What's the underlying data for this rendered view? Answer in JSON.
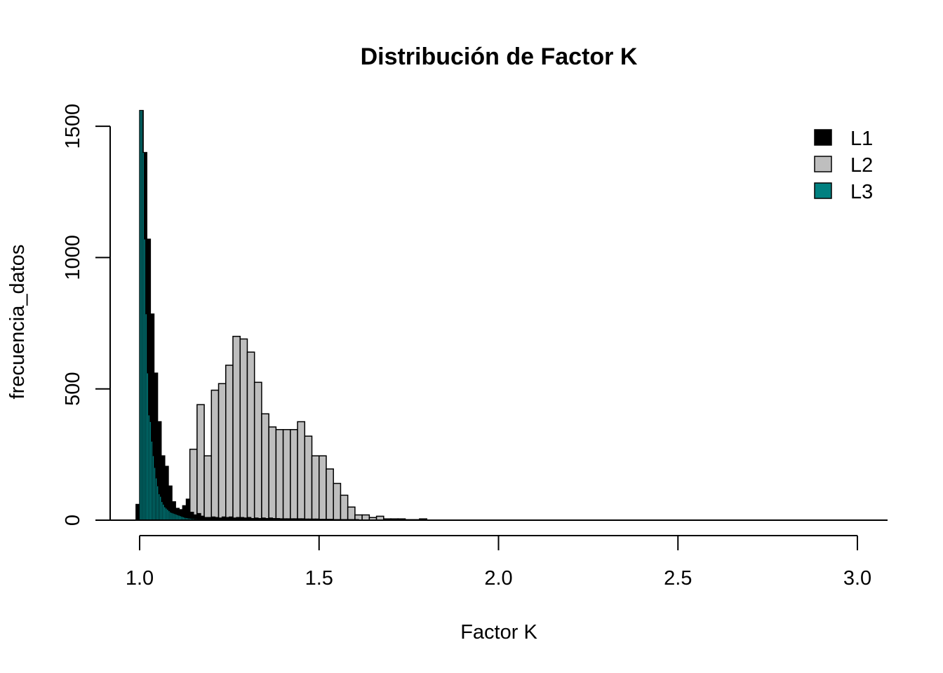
{
  "chart_data": {
    "type": "bar",
    "title": "Distribución de Factor K",
    "xlabel": "Factor K",
    "ylabel": "frecuencia_datos",
    "xlim": [
      0.99,
      3.08
    ],
    "ylim": [
      0,
      1560
    ],
    "x_ticks": [
      {
        "value": 1.0,
        "label": "1.0"
      },
      {
        "value": 1.5,
        "label": "1.5"
      },
      {
        "value": 2.0,
        "label": "2.0"
      },
      {
        "value": 2.5,
        "label": "2.5"
      },
      {
        "value": 3.0,
        "label": "3.0"
      }
    ],
    "y_ticks": [
      {
        "value": 0,
        "label": "0"
      },
      {
        "value": 500,
        "label": "500"
      },
      {
        "value": 1000,
        "label": "1000"
      },
      {
        "value": 1500,
        "label": "1500"
      }
    ],
    "grid": false,
    "legend_position": "top-right",
    "series": [
      {
        "name": "L2",
        "color": "#bebebe",
        "bin_width": 0.02,
        "bins_start": [
          1.14,
          1.16,
          1.18,
          1.2,
          1.22,
          1.24,
          1.26,
          1.28,
          1.3,
          1.32,
          1.34,
          1.36,
          1.38,
          1.4,
          1.42,
          1.44,
          1.46,
          1.48,
          1.5,
          1.52,
          1.54,
          1.56,
          1.58,
          1.6,
          1.62,
          1.64,
          1.66,
          1.68,
          1.7,
          1.72,
          1.74,
          1.76,
          1.78
        ],
        "values": [
          270,
          440,
          245,
          495,
          520,
          590,
          700,
          690,
          640,
          525,
          405,
          355,
          345,
          345,
          345,
          375,
          320,
          245,
          245,
          195,
          140,
          95,
          50,
          20,
          20,
          10,
          15,
          5,
          5,
          5,
          2,
          2,
          5
        ]
      },
      {
        "name": "L1",
        "color": "#000000",
        "bin_width": 0.01,
        "bins_start": [
          0.99,
          1.0,
          1.01,
          1.02,
          1.03,
          1.04,
          1.05,
          1.06,
          1.07,
          1.08,
          1.09,
          1.1,
          1.11,
          1.12,
          1.13,
          1.14,
          1.15,
          1.16,
          1.17,
          1.18,
          1.19,
          1.2,
          1.21,
          1.22,
          1.23,
          1.24,
          1.25,
          1.26,
          1.27,
          1.28,
          1.29,
          1.3,
          1.31,
          1.32,
          1.33,
          1.34,
          1.35,
          1.36,
          1.37,
          1.38,
          1.39,
          1.4,
          1.41,
          1.42,
          1.43,
          1.44,
          1.45,
          1.46,
          1.47,
          1.48,
          1.49,
          1.5,
          1.51,
          1.52,
          1.53,
          1.54,
          1.55,
          1.56,
          1.57,
          1.58,
          1.59,
          1.6
        ],
        "values": [
          60,
          1560,
          1400,
          1070,
          785,
          560,
          375,
          245,
          205,
          130,
          70,
          45,
          40,
          55,
          80,
          30,
          20,
          25,
          15,
          10,
          10,
          12,
          10,
          8,
          12,
          10,
          12,
          8,
          10,
          10,
          8,
          10,
          6,
          8,
          6,
          8,
          6,
          8,
          6,
          6,
          5,
          5,
          5,
          5,
          5,
          5,
          5,
          4,
          4,
          4,
          4,
          3,
          3,
          3,
          3,
          2,
          2,
          2,
          2,
          2,
          2,
          2
        ]
      },
      {
        "name": "L3",
        "color": "#008080",
        "bin_width": 0.004,
        "bins_start": [
          1.0,
          1.004,
          1.008,
          1.012,
          1.016,
          1.02,
          1.024,
          1.028,
          1.032,
          1.036,
          1.04,
          1.044,
          1.048,
          1.052,
          1.056,
          1.06,
          1.064,
          1.068,
          1.072,
          1.076,
          1.08,
          1.084,
          1.088,
          1.092,
          1.096,
          1.1,
          1.104,
          1.108,
          1.112,
          1.116,
          1.12,
          1.124,
          1.128,
          1.132,
          1.136,
          1.14,
          1.144,
          1.148,
          1.152,
          1.156,
          1.16
        ],
        "values": [
          1560,
          1560,
          1400,
          1070,
          785,
          560,
          400,
          375,
          300,
          245,
          200,
          160,
          130,
          100,
          90,
          70,
          60,
          50,
          45,
          40,
          35,
          30,
          28,
          26,
          24,
          22,
          20,
          18,
          16,
          14,
          12,
          10,
          9,
          8,
          7,
          6,
          5,
          5,
          4,
          4,
          3
        ]
      }
    ]
  }
}
